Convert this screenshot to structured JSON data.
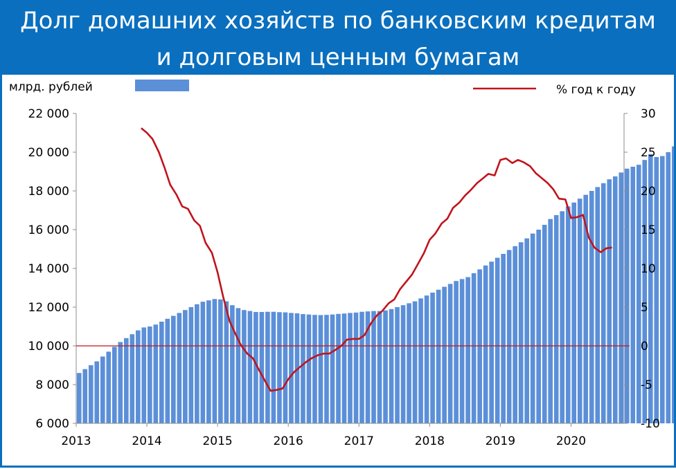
{
  "title": {
    "line1": "Долг домашних хозяйств по банковским кредитам",
    "line2": "и долговым ценным бумагам"
  },
  "colors": {
    "header_bg": "#0a6fbe",
    "bars": "#5b8fd8",
    "line": "#c0141b",
    "zero_line": "#c0141b"
  },
  "chart_data": {
    "type": "bar",
    "legend": {
      "bars": "млрд. рублей",
      "line": "%  год к году"
    },
    "x_ticks": [
      "2013",
      "2014",
      "2015",
      "2016",
      "2017",
      "2018",
      "2019",
      "2020"
    ],
    "x_start": 2013.0,
    "x_end": 2020.75,
    "y_left": {
      "label": "млрд. рублей",
      "lim": [
        6000,
        22000
      ],
      "ticks": [
        6000,
        8000,
        10000,
        12000,
        14000,
        16000,
        18000,
        20000,
        22000
      ],
      "tick_labels": [
        "6 000",
        "8 000",
        "10 000",
        "12 000",
        "14 000",
        "16 000",
        "18 000",
        "20 000",
        "22 000"
      ]
    },
    "y_right": {
      "label": "%  год к году",
      "lim": [
        -10,
        30
      ],
      "ticks": [
        -10,
        -5,
        0,
        5,
        10,
        15,
        20,
        25,
        30
      ],
      "tick_labels": [
        "-10",
        "-5",
        "0",
        "5",
        "10",
        "15",
        "20",
        "25",
        "30"
      ]
    },
    "series": [
      {
        "name": "млрд. рублей",
        "type": "bar",
        "axis": "left",
        "x_start": 2013.0,
        "x_step": 0.0833333,
        "values": [
          8600,
          8800,
          9000,
          9200,
          9450,
          9700,
          9950,
          10200,
          10400,
          10600,
          10800,
          10950,
          11000,
          11100,
          11250,
          11400,
          11550,
          11700,
          11850,
          12000,
          12150,
          12280,
          12350,
          12420,
          12400,
          12300,
          12100,
          11950,
          11850,
          11800,
          11750,
          11750,
          11760,
          11760,
          11740,
          11730,
          11700,
          11680,
          11640,
          11620,
          11600,
          11590,
          11600,
          11620,
          11650,
          11670,
          11700,
          11720,
          11760,
          11780,
          11800,
          11800,
          11830,
          11900,
          12000,
          12100,
          12200,
          12300,
          12450,
          12600,
          12750,
          12900,
          13050,
          13200,
          13350,
          13450,
          13550,
          13750,
          13950,
          14150,
          14350,
          14550,
          14750,
          14950,
          15150,
          15350,
          15550,
          15800,
          16000,
          16250,
          16550,
          16750,
          16950,
          17200,
          17400,
          17600,
          17800,
          18000,
          18200,
          18400,
          18600,
          18750,
          18950,
          19150,
          19250,
          19350,
          19600,
          19900,
          19750,
          19800,
          20000,
          20300,
          20700
        ]
      },
      {
        "name": "%  год к году",
        "type": "line",
        "axis": "right",
        "points": [
          [
            2013.92,
            28.1
          ],
          [
            2014.0,
            27.5
          ],
          [
            2014.08,
            26.7
          ],
          [
            2014.17,
            25.0
          ],
          [
            2014.25,
            23.0
          ],
          [
            2014.33,
            20.8
          ],
          [
            2014.42,
            19.5
          ],
          [
            2014.5,
            18.0
          ],
          [
            2014.58,
            17.7
          ],
          [
            2014.67,
            16.2
          ],
          [
            2014.75,
            15.5
          ],
          [
            2014.83,
            13.3
          ],
          [
            2014.92,
            12.0
          ],
          [
            2015.0,
            9.5
          ],
          [
            2015.08,
            6.3
          ],
          [
            2015.17,
            3.2
          ],
          [
            2015.25,
            1.6
          ],
          [
            2015.33,
            0.1
          ],
          [
            2015.42,
            -1.0
          ],
          [
            2015.5,
            -1.6
          ],
          [
            2015.58,
            -3.0
          ],
          [
            2015.67,
            -4.5
          ],
          [
            2015.75,
            -5.8
          ],
          [
            2015.83,
            -5.7
          ],
          [
            2015.92,
            -5.5
          ],
          [
            2016.0,
            -4.3
          ],
          [
            2016.08,
            -3.4
          ],
          [
            2016.17,
            -2.7
          ],
          [
            2016.25,
            -2.1
          ],
          [
            2016.33,
            -1.6
          ],
          [
            2016.42,
            -1.2
          ],
          [
            2016.5,
            -1.0
          ],
          [
            2016.58,
            -1.0
          ],
          [
            2016.67,
            -0.5
          ],
          [
            2016.75,
            0.0
          ],
          [
            2016.83,
            0.8
          ],
          [
            2016.92,
            0.9
          ],
          [
            2017.0,
            0.9
          ],
          [
            2017.08,
            1.4
          ],
          [
            2017.17,
            2.9
          ],
          [
            2017.25,
            3.9
          ],
          [
            2017.33,
            4.5
          ],
          [
            2017.42,
            5.5
          ],
          [
            2017.5,
            6.0
          ],
          [
            2017.58,
            7.3
          ],
          [
            2017.67,
            8.3
          ],
          [
            2017.75,
            9.2
          ],
          [
            2017.83,
            10.5
          ],
          [
            2017.92,
            12.0
          ],
          [
            2018.0,
            13.7
          ],
          [
            2018.08,
            14.5
          ],
          [
            2018.17,
            15.8
          ],
          [
            2018.25,
            16.4
          ],
          [
            2018.33,
            17.8
          ],
          [
            2018.42,
            18.5
          ],
          [
            2018.5,
            19.4
          ],
          [
            2018.58,
            20.1
          ],
          [
            2018.67,
            21.0
          ],
          [
            2018.75,
            21.6
          ],
          [
            2018.83,
            22.2
          ],
          [
            2018.92,
            22.0
          ],
          [
            2019.0,
            24.0
          ],
          [
            2019.08,
            24.2
          ],
          [
            2019.17,
            23.6
          ],
          [
            2019.25,
            24.0
          ],
          [
            2019.33,
            23.7
          ],
          [
            2019.42,
            23.2
          ],
          [
            2019.5,
            22.3
          ],
          [
            2019.58,
            21.7
          ],
          [
            2019.67,
            21.0
          ],
          [
            2019.75,
            20.2
          ],
          [
            2019.83,
            19.0
          ],
          [
            2019.92,
            18.9
          ],
          [
            2020.0,
            16.5
          ],
          [
            2020.08,
            16.6
          ],
          [
            2020.17,
            16.9
          ],
          [
            2020.25,
            14.0
          ],
          [
            2020.33,
            12.7
          ],
          [
            2020.42,
            12.1
          ],
          [
            2020.5,
            12.6
          ],
          [
            2020.58,
            12.7
          ]
        ]
      }
    ],
    "zero_line": 0,
    "grid": false
  }
}
